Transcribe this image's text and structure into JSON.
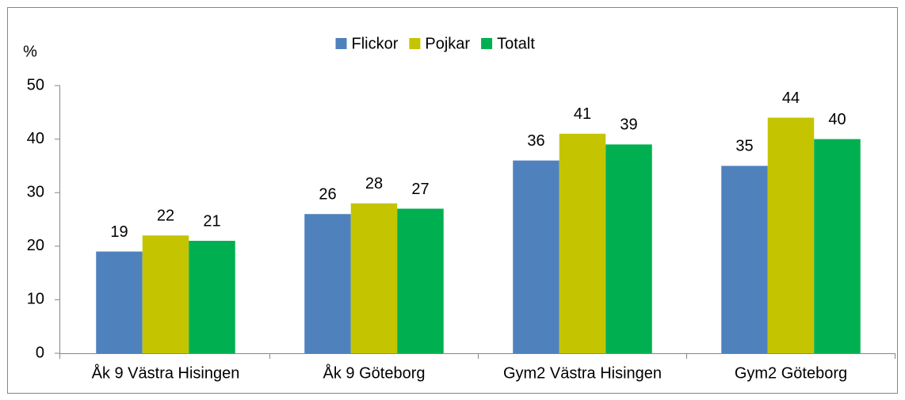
{
  "chart_data": {
    "type": "bar",
    "y_label": "%",
    "categories": [
      "Åk 9 Västra Hisingen",
      "Åk 9 Göteborg",
      "Gym2 Västra Hisingen",
      "Gym2 Göteborg"
    ],
    "series": [
      {
        "name": "Flickor",
        "color": "#4f81bd",
        "values": [
          19,
          26,
          36,
          35
        ]
      },
      {
        "name": "Pojkar",
        "color": "#c4c400",
        "values": [
          22,
          28,
          41,
          44
        ]
      },
      {
        "name": "Totalt",
        "color": "#00b050",
        "values": [
          21,
          27,
          39,
          40
        ]
      }
    ],
    "ylim": [
      0,
      50
    ],
    "yticks": [
      0,
      10,
      20,
      30,
      40,
      50
    ],
    "grid": false,
    "legend": "top"
  }
}
